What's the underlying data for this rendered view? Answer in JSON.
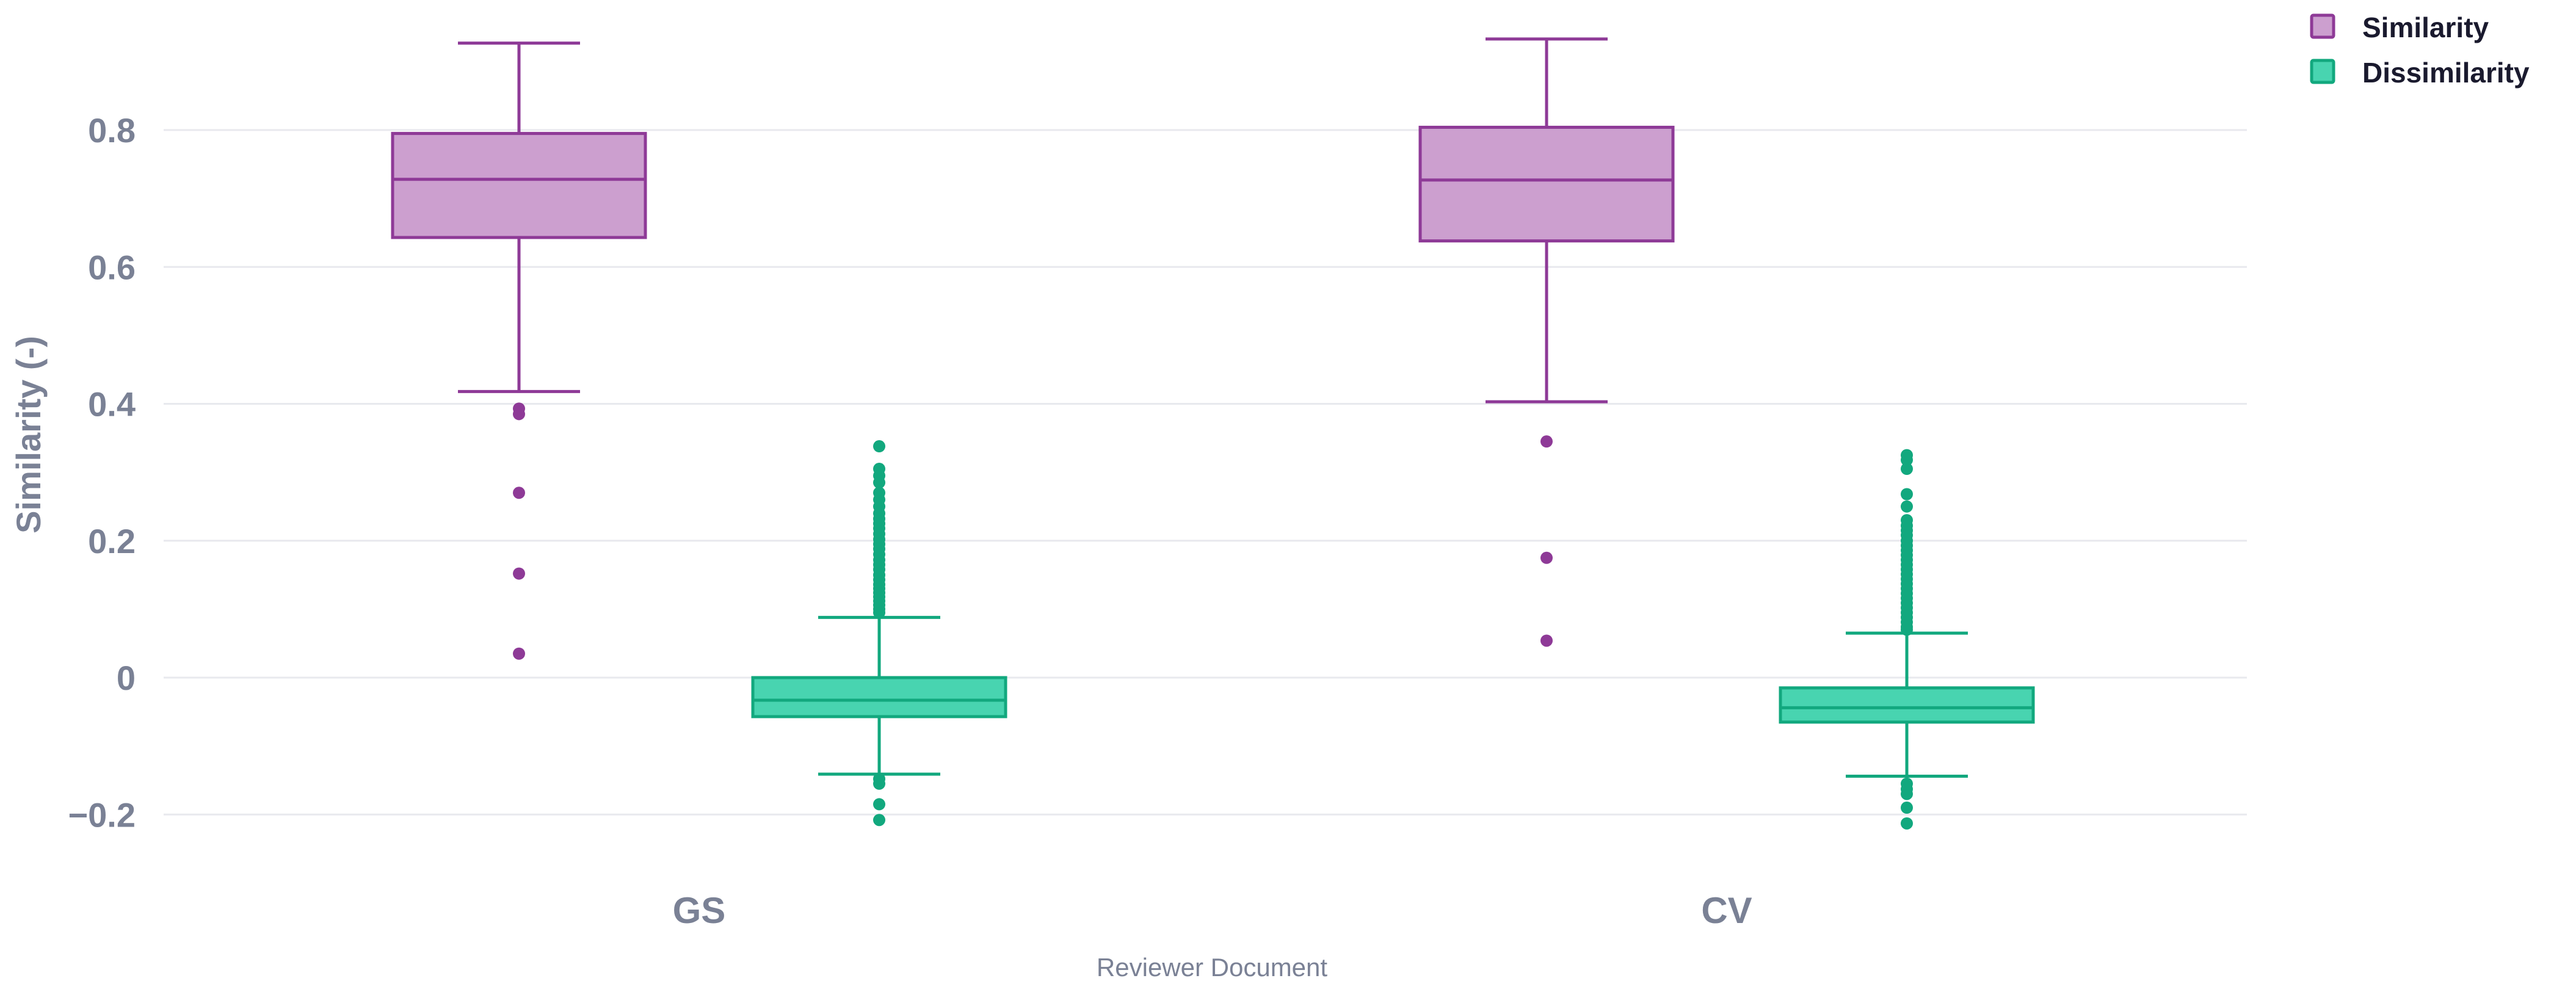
{
  "chart_data": {
    "type": "box",
    "title": "",
    "xlabel": "Reviewer Document",
    "ylabel": "Similarity (-)",
    "ylim": [
      -0.25,
      0.97
    ],
    "yticks": [
      -0.2,
      0,
      0.2,
      0.4,
      0.6,
      0.8
    ],
    "ytick_labels": [
      "−0.2",
      "0",
      "0.2",
      "0.4",
      "0.6",
      "0.8"
    ],
    "grid": true,
    "legend_position": "top-right",
    "categories": [
      "GS",
      "CV"
    ],
    "series": [
      {
        "name": "Similarity",
        "color": "#8e3a97",
        "fill": "#cc9fcf",
        "boxes": [
          {
            "category": "GS",
            "lower_whisker": 0.418,
            "q1": 0.643,
            "median": 0.728,
            "q3": 0.795,
            "upper_whisker": 0.927,
            "outliers": [
              0.393,
              0.385,
              0.27,
              0.152,
              0.035
            ]
          },
          {
            "category": "CV",
            "lower_whisker": 0.403,
            "q1": 0.638,
            "median": 0.727,
            "q3": 0.804,
            "upper_whisker": 0.933,
            "outliers": [
              0.345,
              0.175,
              0.054
            ]
          }
        ]
      },
      {
        "name": "Dissimilarity",
        "color": "#12a87e",
        "fill": "#48d4b0",
        "boxes": [
          {
            "category": "GS",
            "lower_whisker": -0.141,
            "q1": -0.057,
            "median": -0.033,
            "q3": 0.0,
            "upper_whisker": 0.088,
            "outliers": [
              0.338,
              0.305,
              0.295,
              0.285,
              0.27,
              0.26,
              0.25,
              0.24,
              0.232,
              0.225,
              0.218,
              0.21,
              0.202,
              0.195,
              0.188,
              0.18,
              0.172,
              0.165,
              0.158,
              0.15,
              0.143,
              0.136,
              0.13,
              0.124,
              0.118,
              0.112,
              0.106,
              0.1,
              0.095,
              -0.148,
              -0.155,
              -0.185,
              -0.208
            ]
          },
          {
            "category": "CV",
            "lower_whisker": -0.144,
            "q1": -0.065,
            "median": -0.044,
            "q3": -0.015,
            "upper_whisker": 0.065,
            "outliers": [
              0.325,
              0.318,
              0.305,
              0.268,
              0.25,
              0.23,
              0.222,
              0.215,
              0.208,
              0.2,
              0.193,
              0.186,
              0.179,
              0.172,
              0.165,
              0.158,
              0.151,
              0.144,
              0.137,
              0.13,
              0.123,
              0.116,
              0.109,
              0.102,
              0.095,
              0.088,
              0.081,
              0.074,
              0.07,
              -0.155,
              -0.163,
              -0.17,
              -0.19,
              -0.213
            ]
          }
        ]
      }
    ]
  }
}
